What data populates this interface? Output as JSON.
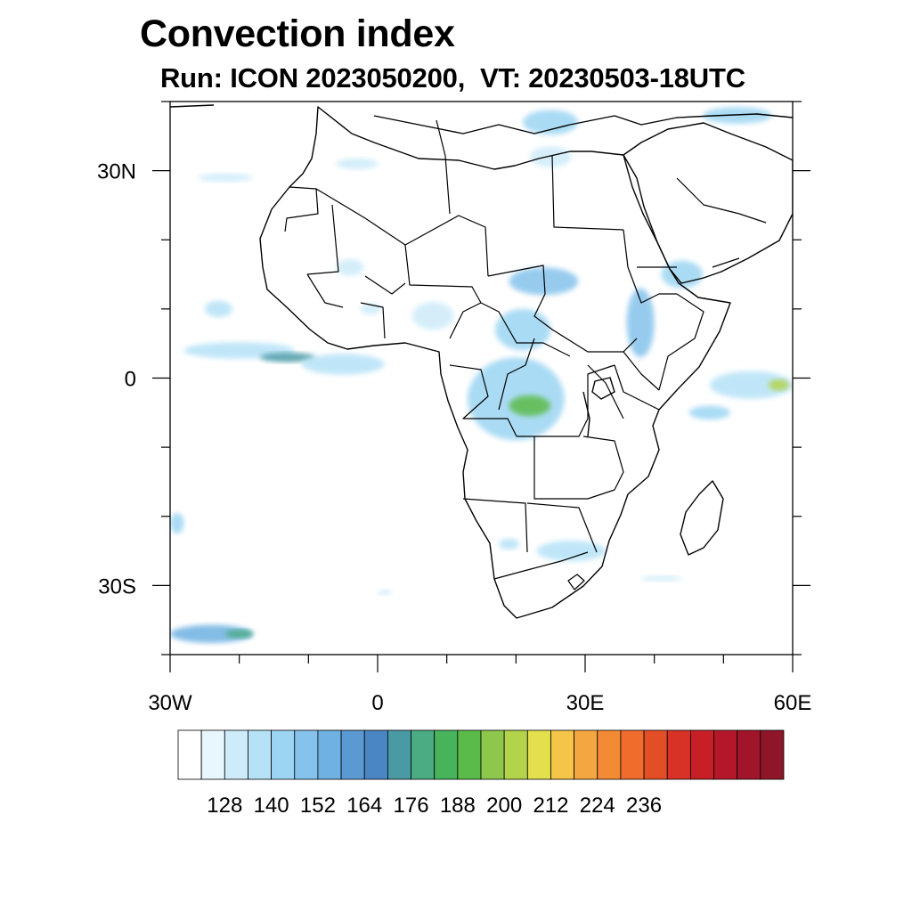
{
  "title": "Convection index",
  "subtitle": "Run: ICON 2023050200,  VT: 20230503-18UTC",
  "map": {
    "lon_range": [
      -30,
      60
    ],
    "lat_range": [
      -40,
      40
    ],
    "lon_ticks": [
      {
        "value": -30,
        "label": "30W"
      },
      {
        "value": 0,
        "label": "0"
      },
      {
        "value": 30,
        "label": "30E"
      },
      {
        "value": 60,
        "label": "60E"
      }
    ],
    "lat_ticks": [
      {
        "value": 30,
        "label": "30N"
      },
      {
        "value": 0,
        "label": "0"
      },
      {
        "value": -30,
        "label": "30S"
      }
    ],
    "minor_lon_step": 10,
    "minor_lat_step": 10
  },
  "colorbar": {
    "colors": [
      "#ffffff",
      "#e8f6fd",
      "#cdebf9",
      "#b5e2f7",
      "#9cd5f3",
      "#85c3ec",
      "#6eb1e2",
      "#5a99d2",
      "#4a86c4",
      "#4a9aa6",
      "#4bab82",
      "#47b35a",
      "#5bbb48",
      "#8dc74b",
      "#b3d34a",
      "#e3e04e",
      "#f5c54a",
      "#f4a640",
      "#f38a34",
      "#ef6c2d",
      "#e44e27",
      "#d83227",
      "#c81f27",
      "#b5172a",
      "#a2142a",
      "#8e1628"
    ],
    "labels": [
      "128",
      "140",
      "152",
      "164",
      "176",
      "188",
      "200",
      "212",
      "224",
      "236"
    ],
    "label_boundary_index": [
      2,
      4,
      6,
      8,
      10,
      12,
      14,
      16,
      18,
      20
    ]
  },
  "convection_patches": [
    {
      "lon": -20,
      "lat": 4,
      "rx": 8,
      "ry": 1.2,
      "level": 3
    },
    {
      "lon": -13,
      "lat": 3,
      "rx": 4,
      "ry": 0.7,
      "level": 9
    },
    {
      "lon": -5,
      "lat": 2,
      "rx": 6,
      "ry": 1.5,
      "level": 3
    },
    {
      "lon": 20,
      "lat": -3,
      "rx": 7,
      "ry": 6,
      "level": 4
    },
    {
      "lon": 22,
      "lat": -4,
      "rx": 3,
      "ry": 1.5,
      "level": 12
    },
    {
      "lon": 24,
      "lat": 14,
      "rx": 5,
      "ry": 2,
      "level": 5
    },
    {
      "lon": 21,
      "lat": 7,
      "rx": 4,
      "ry": 3,
      "level": 4
    },
    {
      "lon": 8,
      "lat": 9,
      "rx": 3,
      "ry": 2,
      "level": 2
    },
    {
      "lon": 38,
      "lat": 8,
      "rx": 2,
      "ry": 5,
      "level": 5
    },
    {
      "lon": 44,
      "lat": 15,
      "rx": 3,
      "ry": 2,
      "level": 4
    },
    {
      "lon": 25,
      "lat": 37,
      "rx": 4,
      "ry": 1.8,
      "level": 4
    },
    {
      "lon": 52,
      "lat": 38,
      "rx": 5,
      "ry": 1.2,
      "level": 4
    },
    {
      "lon": 54,
      "lat": -1,
      "rx": 6,
      "ry": 2,
      "level": 3
    },
    {
      "lon": 58,
      "lat": -1,
      "rx": 1.5,
      "ry": 0.8,
      "level": 14
    },
    {
      "lon": 48,
      "lat": -5,
      "rx": 3,
      "ry": 1,
      "level": 4
    },
    {
      "lon": 28,
      "lat": -25,
      "rx": 5,
      "ry": 1.5,
      "level": 3
    },
    {
      "lon": 19,
      "lat": -24,
      "rx": 1.5,
      "ry": 0.8,
      "level": 3
    },
    {
      "lon": -24,
      "lat": -37,
      "rx": 6,
      "ry": 1.3,
      "level": 6
    },
    {
      "lon": -20,
      "lat": -37,
      "rx": 2,
      "ry": 0.6,
      "level": 10
    },
    {
      "lon": 25,
      "lat": 32,
      "rx": 3,
      "ry": 1.5,
      "level": 2
    },
    {
      "lon": -1,
      "lat": 10,
      "rx": 1.5,
      "ry": 0.8,
      "level": 2
    },
    {
      "lon": -23,
      "lat": 10,
      "rx": 2,
      "ry": 1.2,
      "level": 3
    },
    {
      "lon": -4,
      "lat": 16,
      "rx": 2,
      "ry": 1.2,
      "level": 2
    },
    {
      "lon": -22,
      "lat": 29,
      "rx": 4,
      "ry": 0.6,
      "level": 2
    },
    {
      "lon": -3,
      "lat": 31,
      "rx": 3,
      "ry": 0.8,
      "level": 2
    },
    {
      "lon": -29,
      "lat": -21,
      "rx": 1,
      "ry": 1.5,
      "level": 4
    },
    {
      "lon": 41,
      "lat": -29,
      "rx": 3,
      "ry": 0.4,
      "level": 2
    },
    {
      "lon": 1,
      "lat": -31,
      "rx": 1,
      "ry": 0.4,
      "level": 2
    }
  ]
}
